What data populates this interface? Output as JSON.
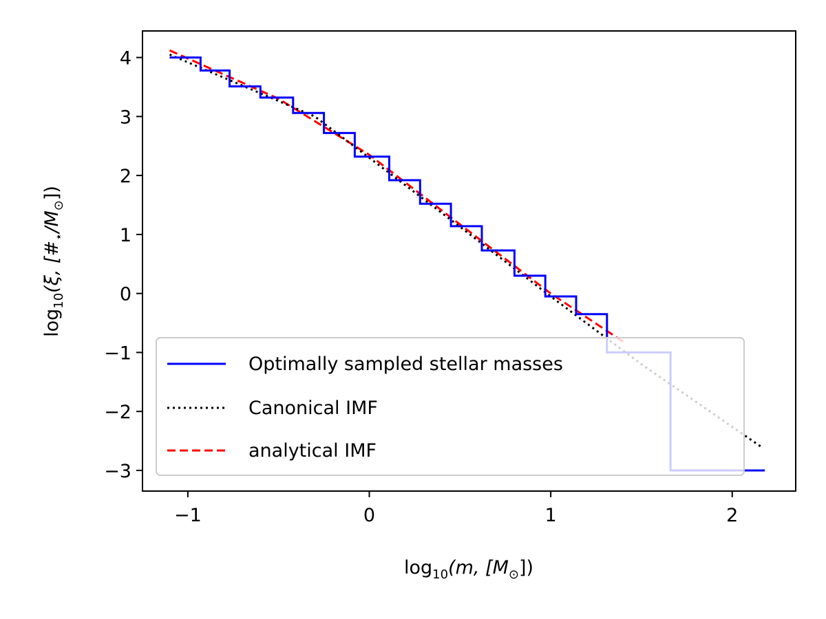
{
  "chart_data": {
    "type": "line",
    "xlabel": {
      "prefix": "log",
      "sub": "10",
      "body": "(m, [M",
      "sub2": "⊙",
      "suffix": "])"
    },
    "ylabel": {
      "prefix": "log",
      "sub": "10",
      "body": "(ξ, [#",
      "sub2": "⋆",
      "mid": "/M",
      "sub3": "⊙",
      "suffix": "])"
    },
    "xlim": [
      -1.25,
      2.35
    ],
    "ylim": [
      -3.35,
      4.45
    ],
    "xticks": [
      -1,
      0,
      1,
      2
    ],
    "xtick_labels": [
      "−1",
      "0",
      "1",
      "2"
    ],
    "yticks": [
      -3,
      -2,
      -1,
      0,
      1,
      2,
      3,
      4
    ],
    "ytick_labels": [
      "−3",
      "−2",
      "−1",
      "0",
      "1",
      "2",
      "3",
      "4"
    ],
    "grid": false,
    "legend_location": "lower-left",
    "series": [
      {
        "name": "Optimally sampled stellar masses",
        "style": "step",
        "color": "#0000ff",
        "edges": [
          -1.1,
          -0.93,
          -0.77,
          -0.6,
          -0.42,
          -0.25,
          -0.08,
          0.11,
          0.28,
          0.45,
          0.62,
          0.8,
          0.97,
          1.14,
          1.31,
          1.49,
          1.66,
          1.84,
          2.01,
          2.18
        ],
        "values": [
          4.0,
          3.78,
          3.51,
          3.32,
          3.06,
          2.72,
          2.32,
          1.92,
          1.52,
          1.14,
          0.73,
          0.3,
          -0.05,
          -0.35,
          -1.0,
          -1.0,
          -3.0,
          -3.0,
          -3.0
        ]
      },
      {
        "name": "Canonical IMF",
        "style": "dotted",
        "color": "#000000",
        "x": [
          -1.1,
          -0.3,
          0.0,
          0.5,
          1.0,
          1.5,
          2.16
        ],
        "y": [
          4.05,
          3.0,
          2.3,
          1.13,
          -0.05,
          -1.2,
          -2.6
        ]
      },
      {
        "name": "analytical IMF",
        "style": "dashed",
        "color": "#ff0000",
        "x": [
          -1.1,
          -0.5,
          0.0,
          0.5,
          1.0,
          1.4
        ],
        "y": [
          4.12,
          3.3,
          2.35,
          1.17,
          0.0,
          -0.82
        ]
      }
    ]
  }
}
